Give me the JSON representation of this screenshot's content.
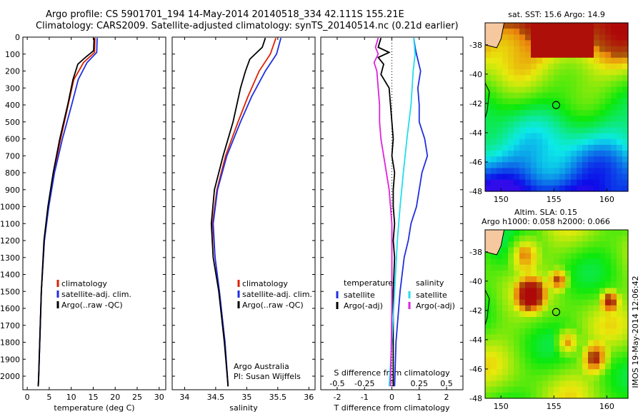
{
  "title": {
    "line1": "Argo profile: CS 5901701_194 14-May-2014 20140518_334 42.111S 155.21E",
    "line2": "Climatology: CARS2009. Satellite-adjusted climatology: synTS_20140514.nc (0.21d earlier)"
  },
  "colors": {
    "climatology": "#dd2200",
    "satellite": "#1f2fe0",
    "argo": "#000000",
    "cyan": "#22ddee",
    "magenta": "#dd22dd"
  },
  "chart_data": [
    {
      "type": "line",
      "panel": "temperature",
      "xlabel": "temperature (deg C)",
      "xlim": [
        -1,
        31.5
      ],
      "ylim": [
        2080,
        0
      ],
      "xticks": [
        "0",
        "5",
        "10",
        "15",
        "20",
        "25",
        "30"
      ],
      "xtick_values": [
        0,
        5,
        10,
        15,
        20,
        25,
        30
      ],
      "yticks": [
        "0",
        "100",
        "200",
        "300",
        "400",
        "500",
        "600",
        "700",
        "800",
        "900",
        "1000",
        "1100",
        "1200",
        "1300",
        "1400",
        "1500",
        "1600",
        "1700",
        "1800",
        "1900",
        "2000"
      ],
      "legend": [
        "climatology",
        "satellite-adj. clim.",
        "Argo(..raw -QC)"
      ],
      "series": [
        {
          "name": "climatology",
          "color": "#dd2200",
          "depth": [
            5,
            90,
            150,
            250,
            400,
            600,
            800,
            1000,
            1200,
            1500,
            2000,
            2060
          ],
          "values": [
            15.4,
            15.3,
            12.8,
            10.6,
            9.3,
            7.6,
            6.0,
            4.8,
            3.9,
            3.2,
            2.6,
            2.5
          ]
        },
        {
          "name": "satellite-adj. clim.",
          "color": "#1f2fe0",
          "depth": [
            5,
            90,
            150,
            250,
            400,
            600,
            800,
            1000,
            1200,
            1500,
            2000,
            2060
          ],
          "values": [
            15.9,
            15.8,
            13.6,
            11.6,
            10.1,
            8.0,
            6.2,
            4.9,
            3.9,
            3.2,
            2.6,
            2.5
          ]
        },
        {
          "name": "Argo(..raw -QC)",
          "color": "#000000",
          "depth": [
            5,
            80,
            120,
            160,
            250,
            400,
            600,
            800,
            1000,
            1200,
            1500,
            2000,
            2060
          ],
          "values": [
            15.2,
            15.1,
            13.2,
            11.5,
            10.4,
            9.2,
            7.4,
            5.9,
            4.7,
            3.8,
            3.2,
            2.6,
            2.5
          ]
        }
      ]
    },
    {
      "type": "line",
      "panel": "salinity",
      "xlabel": "salinity",
      "xlim": [
        33.8,
        36.1
      ],
      "ylim": [
        2080,
        0
      ],
      "xticks": [
        "34",
        "34.5",
        "35",
        "35.5",
        "36"
      ],
      "xtick_values": [
        34,
        34.5,
        35,
        35.5,
        36
      ],
      "legend": [
        "climatology",
        "satellite-adj. clim.",
        "Argo(..raw -QC)"
      ],
      "annotation": [
        "Argo Australia",
        "PI: Susan Wijffels"
      ],
      "series": [
        {
          "name": "climatology",
          "color": "#dd2200",
          "depth": [
            5,
            100,
            200,
            350,
            500,
            700,
            900,
            1100,
            1300,
            1500,
            1800,
            2060
          ],
          "values": [
            35.47,
            35.38,
            35.2,
            35.02,
            34.86,
            34.66,
            34.52,
            34.45,
            34.49,
            34.56,
            34.65,
            34.7
          ]
        },
        {
          "name": "satellite-adj. clim.",
          "color": "#1f2fe0",
          "depth": [
            5,
            100,
            200,
            350,
            500,
            700,
            900,
            1100,
            1300,
            1500,
            1800,
            2060
          ],
          "values": [
            35.55,
            35.48,
            35.3,
            35.08,
            34.9,
            34.68,
            34.53,
            34.46,
            34.49,
            34.56,
            34.65,
            34.7
          ]
        },
        {
          "name": "Argo(..raw -QC)",
          "color": "#000000",
          "depth": [
            5,
            60,
            130,
            200,
            300,
            500,
            700,
            900,
            1100,
            1300,
            1500,
            1800,
            2060
          ],
          "values": [
            35.3,
            35.25,
            35.05,
            34.98,
            34.9,
            34.78,
            34.62,
            34.48,
            34.43,
            34.46,
            34.55,
            34.64,
            34.7
          ]
        }
      ]
    },
    {
      "type": "line",
      "panel": "difference",
      "xlabel": "T difference from climatology",
      "xlabel_top": "S difference from climatology",
      "xlim": [
        -2.6,
        2.6
      ],
      "ylim": [
        2080,
        0
      ],
      "xticks": [
        "-2",
        "-1",
        "0",
        "1",
        "2"
      ],
      "xtick_values": [
        -2,
        -1,
        0,
        1,
        2
      ],
      "sticks": [
        "-0.5",
        "-0.25",
        "0",
        "0.25",
        "0.5"
      ],
      "stick_values": [
        -0.5,
        -0.25,
        0,
        0.25,
        0.5
      ],
      "legend_t_title": "temperature",
      "legend_s_title": "salinity",
      "legend_t": [
        "satellite",
        "Argo(-adj)"
      ],
      "legend_s": [
        "satellite",
        "Argo(-adj)"
      ],
      "series": [
        {
          "name": "T satellite",
          "color": "#1f2fe0",
          "depth": [
            5,
            60,
            100,
            200,
            300,
            400,
            500,
            600,
            700,
            800,
            900,
            1000,
            1100,
            1200,
            1300,
            1500,
            1800,
            2060
          ],
          "values": [
            0.8,
            0.85,
            0.9,
            1.05,
            0.95,
            1.0,
            1.0,
            1.2,
            1.3,
            1.1,
            1.0,
            0.9,
            0.7,
            0.6,
            0.45,
            0.3,
            0.15,
            0.1
          ]
        },
        {
          "name": "T Argo(-adj)",
          "color": "#000000",
          "depth": [
            5,
            60,
            90,
            120,
            160,
            220,
            300,
            400,
            500,
            600,
            700,
            800,
            900,
            1000,
            1100,
            1200,
            1300,
            1500,
            1800,
            2060
          ],
          "values": [
            -0.4,
            -0.5,
            -0.1,
            -0.5,
            -0.3,
            -0.4,
            -0.1,
            -0.05,
            0.0,
            0.05,
            0.0,
            0.1,
            0.05,
            0.05,
            0.1,
            0.05,
            0.1,
            0.05,
            0.05,
            0.05
          ]
        },
        {
          "name": "S satellite",
          "color": "#22ddee",
          "depth": [
            5,
            100,
            200,
            400,
            600,
            800,
            1000,
            1200,
            1500,
            1800,
            2060
          ],
          "values": [
            0.8,
            0.85,
            0.78,
            0.7,
            0.55,
            0.42,
            0.3,
            0.2,
            0.1,
            0.0,
            -0.1
          ]
        },
        {
          "name": "S Argo(-adj)",
          "color": "#dd22dd",
          "depth": [
            5,
            60,
            100,
            150,
            200,
            300,
            400,
            500,
            600,
            700,
            800,
            900,
            1000,
            1100,
            1200,
            1400,
            1600,
            2060
          ],
          "values": [
            -0.5,
            -0.6,
            -0.5,
            -0.65,
            -0.55,
            -0.5,
            -0.45,
            -0.45,
            -0.4,
            -0.3,
            -0.2,
            -0.1,
            -0.05,
            0.0,
            0.0,
            0.0,
            0.0,
            -0.05
          ]
        }
      ]
    },
    {
      "type": "heatmap",
      "panel": "sst_map",
      "title": "sat. SST: 15.6  Argo: 14.9",
      "xlim": [
        148.5,
        162
      ],
      "ylim": [
        -48,
        -36.5
      ],
      "xticks": [
        "150",
        "155",
        "160"
      ],
      "xtick_values": [
        150,
        155,
        160
      ],
      "yticks": [
        "-38",
        "-40",
        "-42",
        "-44",
        "-46",
        "-48"
      ],
      "ytick_values": [
        -38,
        -40,
        -42,
        -44,
        -46,
        -48
      ],
      "marker": {
        "lon": 155.21,
        "lat": -42.111
      }
    },
    {
      "type": "heatmap",
      "panel": "sla_map",
      "title_line1": "Altim. SLA: 0.15",
      "title_line2": "Argo h1000: 0.058 h2000: 0.066",
      "xlim": [
        148.5,
        162
      ],
      "ylim": [
        -48,
        -36.5
      ],
      "xticks": [
        "150",
        "155",
        "160"
      ],
      "xtick_values": [
        150,
        155,
        160
      ],
      "yticks": [
        "-38",
        "-40",
        "-42",
        "-44",
        "-46",
        "-48"
      ],
      "ytick_values": [
        -38,
        -40,
        -42,
        -44,
        -46,
        -48
      ],
      "marker": {
        "lon": 155.21,
        "lat": -42.111
      }
    }
  ],
  "credit": "IMOS 19-May-2014 12:06:42"
}
